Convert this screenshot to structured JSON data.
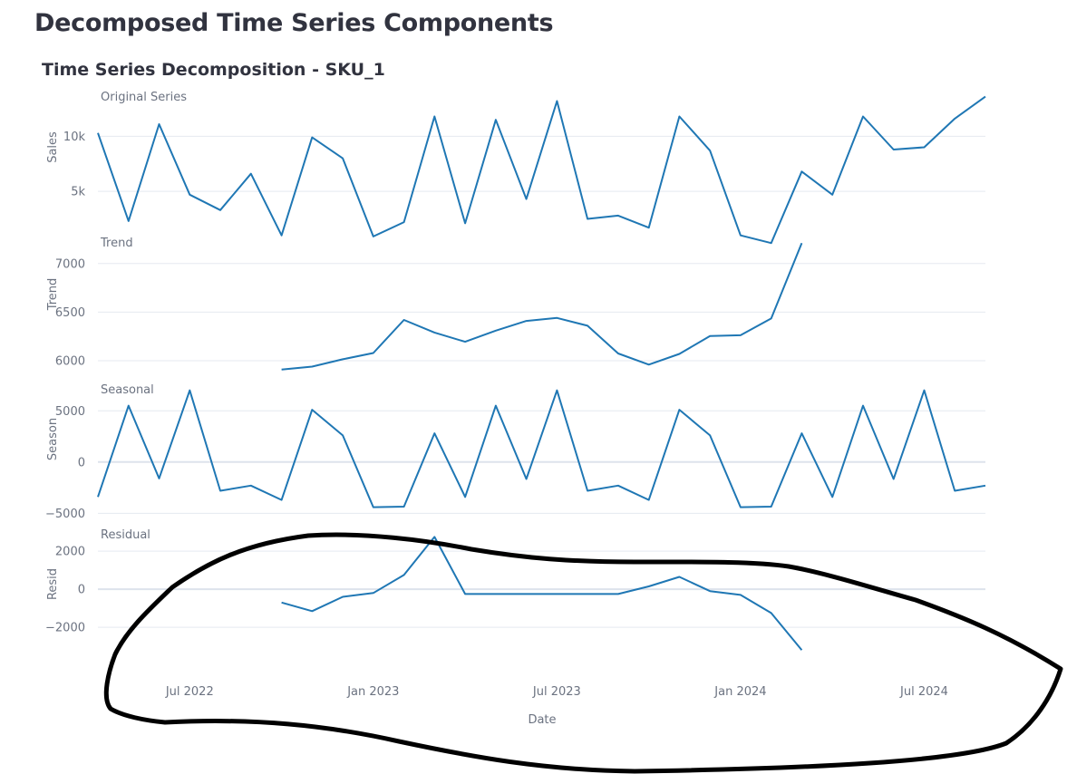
{
  "page": {
    "heading": "Decomposed Time Series Components"
  },
  "chart_data": {
    "type": "line",
    "title": "Time Series Decomposition - SKU_1",
    "xlabel": "Date",
    "x_tick_labels": [
      "Jul 2022",
      "Jan 2023",
      "Jul 2023",
      "Jan 2024",
      "Jul 2024"
    ],
    "x": [
      "2022-04",
      "2022-05",
      "2022-06",
      "2022-07",
      "2022-08",
      "2022-09",
      "2022-10",
      "2022-11",
      "2022-12",
      "2023-01",
      "2023-02",
      "2023-03",
      "2023-04",
      "2023-05",
      "2023-06",
      "2023-07",
      "2023-08",
      "2023-09",
      "2023-10",
      "2023-11",
      "2023-12",
      "2024-01",
      "2024-02",
      "2024-03",
      "2024-04",
      "2024-05",
      "2024-06",
      "2024-07",
      "2024-08",
      "2024-09"
    ],
    "line_color": "#1f77b4",
    "grid": true,
    "panels": [
      {
        "name": "Original Series",
        "ylabel": "Sales",
        "ylim": [
          1800,
          13900
        ],
        "ticks": [
          {
            "value": 5000,
            "label": "5k"
          },
          {
            "value": 10000,
            "label": "10k"
          }
        ],
        "values": [
          10300,
          2300,
          11100,
          4700,
          3300,
          6600,
          1000,
          9900,
          8000,
          900,
          2200,
          11800,
          2100,
          11500,
          4300,
          13200,
          2500,
          2800,
          1700,
          11800,
          8700,
          1000,
          300,
          6800,
          4700,
          11800,
          8800,
          9000,
          11600,
          13600
        ]
      },
      {
        "name": "Trend",
        "ylabel": "Trend",
        "ylim": [
          5870,
          7240
        ],
        "ticks": [
          {
            "value": 6000,
            "label": "6000"
          },
          {
            "value": 6500,
            "label": "6500"
          },
          {
            "value": 7000,
            "label": "7000"
          }
        ],
        "values": [
          null,
          null,
          null,
          null,
          null,
          null,
          5910,
          5940,
          6015,
          6080,
          6420,
          6290,
          6195,
          6310,
          6410,
          6440,
          6360,
          6075,
          5960,
          6070,
          6255,
          6262,
          6435,
          7210,
          null,
          null,
          null,
          null,
          null,
          null
        ]
      },
      {
        "name": "Seasonal",
        "ylabel": "Season",
        "ylim": [
          -5500,
          7500
        ],
        "ticks": [
          {
            "value": -5000,
            "label": "−5000"
          },
          {
            "value": 0,
            "label": "0"
          },
          {
            "value": 5000,
            "label": "5000"
          }
        ],
        "values": [
          -3400,
          5500,
          -1600,
          7000,
          -2800,
          -2300,
          -3700,
          5100,
          2600,
          -4400,
          -4350,
          2800,
          -3400,
          5500,
          -1650,
          7000,
          -2800,
          -2300,
          -3700,
          5100,
          2600,
          -4400,
          -4350,
          2800,
          -3400,
          5500,
          -1650,
          7000,
          -2800,
          -2300
        ]
      },
      {
        "name": "Residual",
        "ylabel": "Resid",
        "ylim": [
          -3900,
          3100
        ],
        "ticks": [
          {
            "value": -2000,
            "label": "−2000"
          },
          {
            "value": 0,
            "label": "0"
          },
          {
            "value": 2000,
            "label": "2000"
          }
        ],
        "values": [
          null,
          null,
          null,
          null,
          null,
          null,
          -700,
          -1150,
          -400,
          -200,
          750,
          2750,
          -250,
          -250,
          -250,
          -250,
          -250,
          -250,
          150,
          650,
          -100,
          -300,
          -1250,
          -3200,
          null,
          null,
          null,
          null,
          null,
          null
        ]
      }
    ]
  },
  "annotation": {
    "type": "hand-drawn circle",
    "color": "#000000"
  }
}
